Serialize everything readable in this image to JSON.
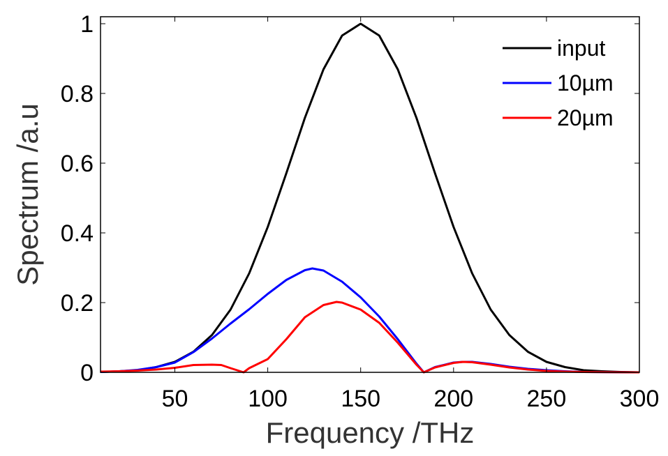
{
  "chart_data": {
    "type": "line",
    "title": "",
    "xlabel": "Frequency /THz",
    "ylabel": "Spectrum /a.u",
    "xlim": [
      10,
      300
    ],
    "ylim": [
      0,
      1.02
    ],
    "xticks": [
      50,
      100,
      150,
      200,
      250,
      300
    ],
    "xtick_labels": [
      "50",
      "100",
      "150",
      "200",
      "250",
      "300"
    ],
    "yticks": [
      0,
      0.2,
      0.4,
      0.6,
      0.8,
      1
    ],
    "ytick_labels": [
      "0",
      "0.2",
      "0.4",
      "0.6",
      "0.8",
      "1"
    ],
    "grid": false,
    "legend_position": "top-right",
    "series": [
      {
        "name": "input",
        "color": "#000000",
        "x": [
          10,
          20,
          30,
          40,
          50,
          60,
          70,
          80,
          90,
          100,
          110,
          120,
          130,
          140,
          150,
          160,
          170,
          180,
          190,
          200,
          210,
          220,
          230,
          240,
          250,
          260,
          270,
          280,
          290,
          300
        ],
        "y": [
          0.001,
          0.003,
          0.006,
          0.015,
          0.03,
          0.059,
          0.107,
          0.18,
          0.284,
          0.417,
          0.571,
          0.73,
          0.869,
          0.966,
          1.0,
          0.966,
          0.869,
          0.73,
          0.571,
          0.417,
          0.284,
          0.18,
          0.107,
          0.059,
          0.03,
          0.015,
          0.006,
          0.003,
          0.001,
          0.0
        ]
      },
      {
        "name": "10µm",
        "color": "#0000ff",
        "x": [
          10,
          20,
          30,
          40,
          50,
          60,
          70,
          80,
          90,
          100,
          110,
          120,
          124,
          130,
          140,
          150,
          160,
          170,
          180,
          184,
          190,
          200,
          205,
          210,
          220,
          230,
          240,
          250,
          260,
          270,
          300
        ],
        "y": [
          0.001,
          0.003,
          0.007,
          0.015,
          0.028,
          0.058,
          0.097,
          0.14,
          0.181,
          0.225,
          0.265,
          0.293,
          0.298,
          0.292,
          0.26,
          0.215,
          0.16,
          0.095,
          0.025,
          0.0,
          0.015,
          0.028,
          0.03,
          0.03,
          0.024,
          0.016,
          0.01,
          0.006,
          0.003,
          0.001,
          0.0
        ]
      },
      {
        "name": "20µm",
        "color": "#ff0000",
        "x": [
          10,
          20,
          30,
          40,
          50,
          60,
          70,
          75,
          80,
          87,
          90,
          100,
          110,
          120,
          130,
          137,
          140,
          150,
          160,
          170,
          180,
          184,
          190,
          200,
          205,
          210,
          220,
          230,
          240,
          250,
          260,
          270,
          300
        ],
        "y": [
          0.002,
          0.003,
          0.005,
          0.008,
          0.013,
          0.021,
          0.022,
          0.021,
          0.012,
          0.0,
          0.012,
          0.038,
          0.095,
          0.158,
          0.193,
          0.202,
          0.2,
          0.18,
          0.142,
          0.085,
          0.022,
          0.0,
          0.014,
          0.027,
          0.03,
          0.029,
          0.022,
          0.014,
          0.008,
          0.004,
          0.002,
          0.001,
          0.0
        ]
      }
    ]
  }
}
